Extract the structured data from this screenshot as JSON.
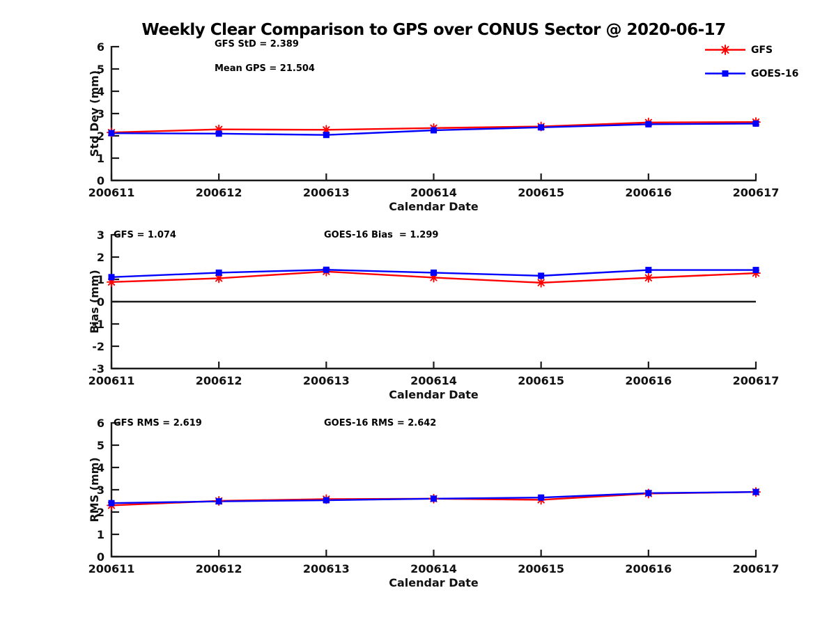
{
  "title": "Weekly Clear Comparison to GPS over CONUS Sector @ 2020-06-17",
  "colors": {
    "gfs_red": "#ff0000",
    "goes_blue": "#0000ff",
    "axis": "#1a1a1a",
    "text": "#000000",
    "background": "#ffffff"
  },
  "legend": {
    "items": [
      {
        "label": "GFS",
        "color": "#ff0000",
        "marker": "asterisk"
      },
      {
        "label": "GOES-16",
        "color": "#0000ff",
        "marker": "square"
      }
    ],
    "position": "top-right",
    "box": false
  },
  "chart_data": [
    {
      "id": "std-dev",
      "type": "line",
      "ylabel": "Std Dev (mm)",
      "xlabel": "Calendar Date",
      "ylim": [
        0,
        6
      ],
      "yticks": [
        0,
        1,
        2,
        3,
        4,
        5,
        6
      ],
      "x": [
        "200611",
        "200612",
        "200613",
        "200614",
        "200615",
        "200616",
        "200617"
      ],
      "grid": false,
      "zero_line": false,
      "annotations": [
        {
          "text": "GFS StD = 2.389"
        },
        {
          "text": "Mean GPS = 21.504"
        }
      ],
      "series": [
        {
          "name": "GFS",
          "color": "#ff0000",
          "marker": "asterisk",
          "values": [
            2.15,
            2.29,
            2.27,
            2.35,
            2.42,
            2.6,
            2.62
          ]
        },
        {
          "name": "GOES-16",
          "color": "#0000ff",
          "marker": "square",
          "values": [
            2.12,
            2.1,
            2.04,
            2.25,
            2.38,
            2.52,
            2.55
          ]
        }
      ]
    },
    {
      "id": "bias",
      "type": "line",
      "ylabel": "Bias (mm)",
      "xlabel": "Calendar Date",
      "ylim": [
        -3,
        3
      ],
      "yticks": [
        -3,
        -2,
        -1,
        0,
        1,
        2,
        3
      ],
      "x": [
        "200611",
        "200612",
        "200613",
        "200614",
        "200615",
        "200616",
        "200617"
      ],
      "grid": false,
      "zero_line": true,
      "annotations": [
        {
          "text": "GFS = 1.074"
        },
        {
          "text": "GOES-16 Bias  = 1.299"
        }
      ],
      "series": [
        {
          "name": "GFS",
          "color": "#ff0000",
          "marker": "asterisk",
          "values": [
            0.88,
            1.05,
            1.35,
            1.08,
            0.85,
            1.07,
            1.28
          ]
        },
        {
          "name": "GOES-16",
          "color": "#0000ff",
          "marker": "square",
          "values": [
            1.1,
            1.3,
            1.43,
            1.3,
            1.16,
            1.42,
            1.42
          ]
        }
      ]
    },
    {
      "id": "rms",
      "type": "line",
      "ylabel": "RMS (mm)",
      "xlabel": "Calendar Date",
      "ylim": [
        0,
        6
      ],
      "yticks": [
        0,
        1,
        2,
        3,
        4,
        5,
        6
      ],
      "x": [
        "200611",
        "200612",
        "200613",
        "200614",
        "200615",
        "200616",
        "200617"
      ],
      "grid": false,
      "zero_line": false,
      "annotations": [
        {
          "text": "GFS RMS = 2.619"
        },
        {
          "text": "GOES-16 RMS = 2.642"
        }
      ],
      "series": [
        {
          "name": "GFS",
          "color": "#ff0000",
          "marker": "asterisk",
          "values": [
            2.3,
            2.5,
            2.58,
            2.6,
            2.55,
            2.83,
            2.9
          ]
        },
        {
          "name": "GOES-16",
          "color": "#0000ff",
          "marker": "square",
          "values": [
            2.4,
            2.48,
            2.53,
            2.6,
            2.65,
            2.85,
            2.9
          ]
        }
      ]
    }
  ]
}
